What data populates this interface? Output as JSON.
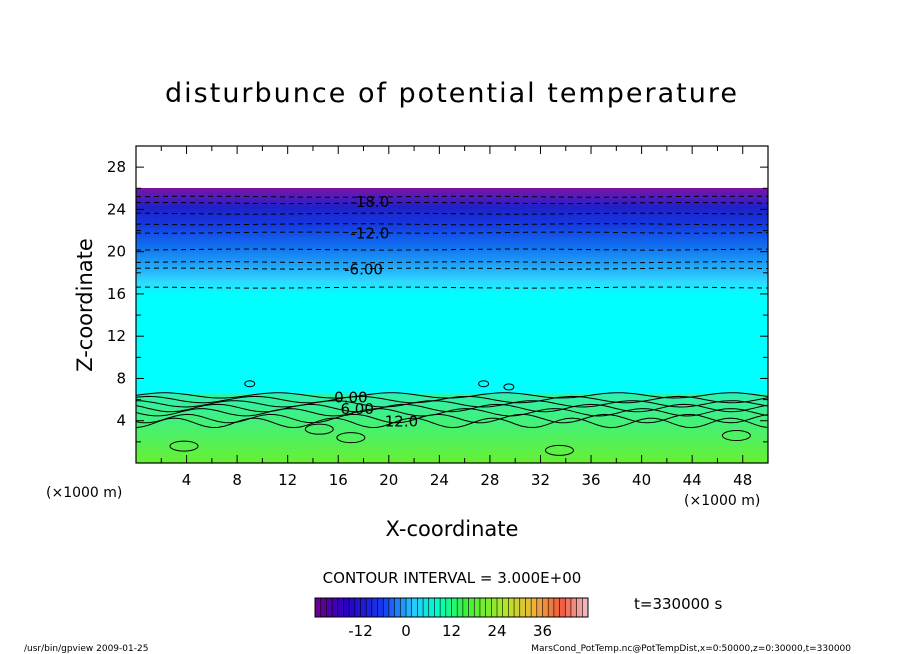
{
  "chart_data": {
    "type": "contour",
    "title": "disturbunce of potential temperature",
    "xlabel": "X-coordinate",
    "ylabel": "Z-coordinate",
    "x_unit": "(×1000 m)",
    "y_unit": "(×1000 m)",
    "xlim": [
      0,
      50
    ],
    "ylim": [
      0,
      30
    ],
    "x_ticks": [
      4,
      8,
      12,
      16,
      20,
      24,
      28,
      32,
      36,
      40,
      44,
      48
    ],
    "y_ticks": [
      4,
      8,
      12,
      16,
      20,
      24,
      28
    ],
    "contour_interval_label": "CONTOUR INTERVAL = 3.000E+00",
    "contour_labels": [
      {
        "text": "-18.0",
        "x": 18.5,
        "z": 24.8
      },
      {
        "text": "-12.0",
        "x": 18.5,
        "z": 21.8
      },
      {
        "text": "-6.00",
        "x": 18.0,
        "z": 18.4
      },
      {
        "text": "0.00",
        "x": 17.0,
        "z": 6.3
      },
      {
        "text": "6.00",
        "x": 17.5,
        "z": 5.2
      },
      {
        "text": "12.0",
        "x": 21.0,
        "z": 4.0
      }
    ],
    "colorbar": {
      "tick_labels": [
        "-12",
        "0",
        "12",
        "24",
        "36"
      ],
      "tick_values": [
        -12,
        0,
        12,
        24,
        36
      ],
      "range": [
        -24,
        48
      ]
    },
    "time_label": "t=330000 s",
    "field_note": "data above z≈26 (×1000 m) undefined (blank)",
    "bands": [
      {
        "z": [
          0,
          4.0
        ],
        "value": 14
      },
      {
        "z": [
          4.0,
          6.2
        ],
        "value": 6
      },
      {
        "z": [
          6.2,
          16.0
        ],
        "value": 0
      },
      {
        "z": [
          16.0,
          26.0
        ],
        "value": -12
      }
    ]
  },
  "footer": {
    "left": "/usr/bin/gpview  2009-01-25",
    "right": "MarsCond_PotTemp.nc@PotTempDist,x=0:50000,z=0:30000,t=330000"
  },
  "colors": {
    "cyan": "#00ffff",
    "green": "#66f033",
    "purple": "#7a1aa6"
  }
}
